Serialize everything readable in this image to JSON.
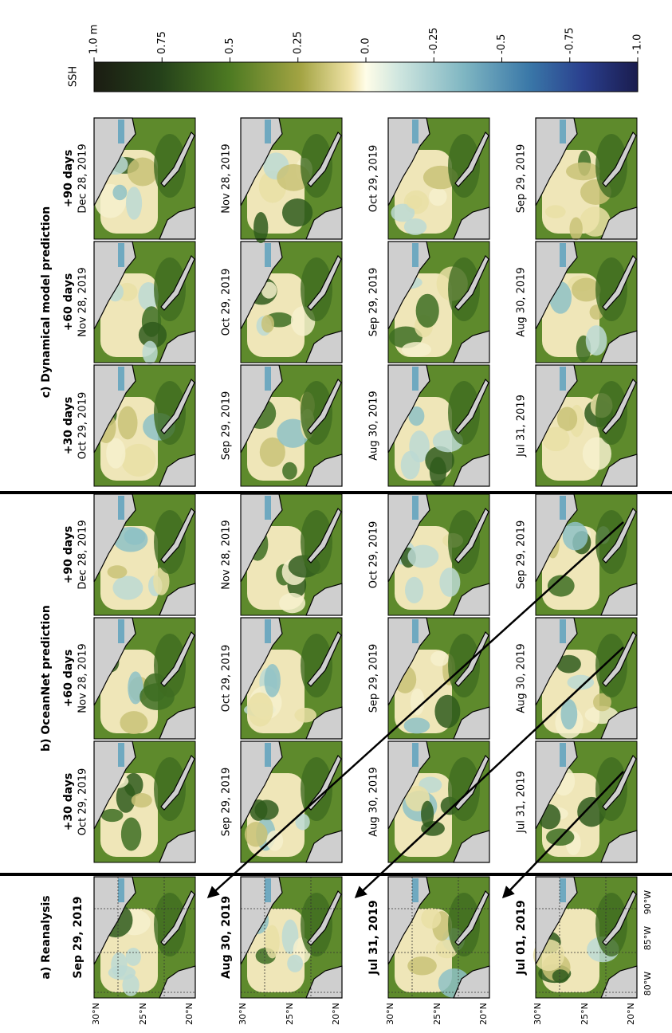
{
  "sections": [
    {
      "title": "a) Reanalysis",
      "rows": [
        [
          "Sep 29, 2019"
        ],
        [
          "Aug 30, 2019"
        ],
        [
          "Jul 31, 2019"
        ],
        [
          "Jul 01, 2019"
        ]
      ]
    },
    {
      "title": "b) OceanNet prediction",
      "leads": [
        "+30 days",
        "+60 days",
        "+90 days"
      ],
      "rows": [
        [
          "Oct 29, 2019",
          "Nov 28, 2019",
          "Dec 28, 2019"
        ],
        [
          "Sep 29, 2019",
          "Oct 29, 2019",
          "Nov 28, 2019"
        ],
        [
          "Aug 30, 2019",
          "Sep 29, 2019",
          "Oct 29, 2019"
        ],
        [
          "Jul 31, 2019",
          "Aug 30, 2019",
          "Sep 29, 2019"
        ]
      ]
    },
    {
      "title": "c) Dynamical model prediction",
      "leads": [
        "+30 days",
        "+60 days",
        "+90 days"
      ],
      "rows": [
        [
          "Oct 29, 2019",
          "Nov 28, 2019",
          "Dec 28, 2019"
        ],
        [
          "Sep 29, 2019",
          "Oct 29, 2019",
          "Nov 28, 2019"
        ],
        [
          "Aug 30, 2019",
          "Sep 29, 2019",
          "Oct 29, 2019"
        ],
        [
          "Jul 31, 2019",
          "Aug 30, 2019",
          "Sep 29, 2019"
        ]
      ]
    }
  ],
  "lat_labels": [
    "30°N",
    "25°N",
    "20°N"
  ],
  "lon_labels": [
    "90°W",
    "85°W",
    "80°W"
  ],
  "colorbar": {
    "label": "SSH",
    "lim": [
      1.0,
      -1.0
    ],
    "ticks": [
      {
        "value": 1.0,
        "label": "1.0 m"
      },
      0.75,
      0.5,
      0.25,
      {
        "value": 0.0,
        "label": "0.0"
      },
      -0.25,
      -0.5,
      -0.75,
      {
        "value": -1.0,
        "label": "-1.0"
      }
    ]
  }
}
